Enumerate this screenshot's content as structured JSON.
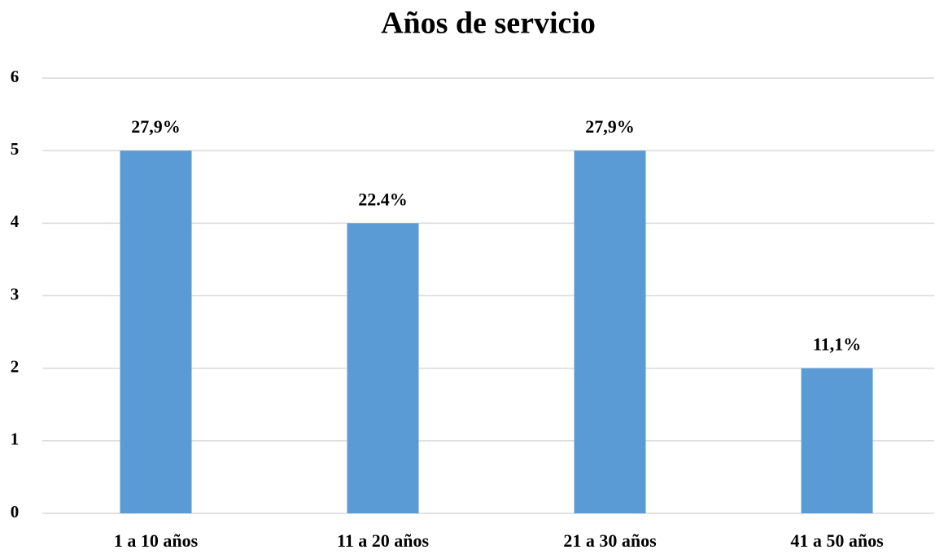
{
  "chart_data": {
    "type": "bar",
    "title": "Años de servicio",
    "categories": [
      "1 a 10 años",
      "11 a 20 años",
      "21 a 30 años",
      "41 a 50 años"
    ],
    "values": [
      5,
      4,
      5,
      2
    ],
    "annotations": [
      "27,9%",
      "22.4%",
      "27,9%",
      "11,1%"
    ],
    "color": "#5b9bd5",
    "ylim": [
      0,
      6
    ],
    "yticks": [
      0,
      1,
      2,
      3,
      4,
      5,
      6
    ],
    "grid": true
  }
}
